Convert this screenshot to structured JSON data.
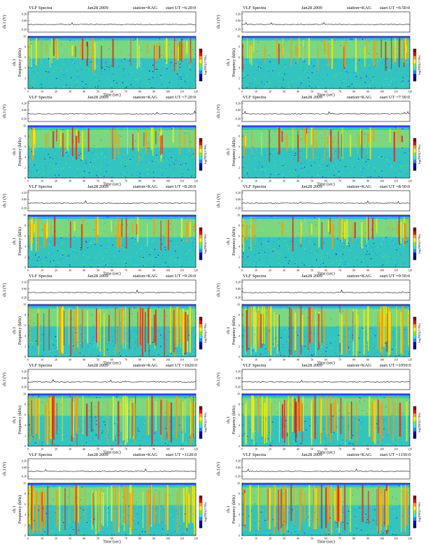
{
  "figure": {
    "panels": [
      {
        "header_left": "VLF Spectra",
        "date": "Jan28 2009",
        "station": "station=KAG",
        "start": "start  UT  =6:20:0"
      },
      {
        "header_left": "VLF Spectra",
        "date": "Jan28 2009",
        "station": "station=KAG",
        "start": "start  UT  =6:50:0"
      },
      {
        "header_left": "VLF Spectra",
        "date": "Jan28 2009",
        "station": "station=KAG",
        "start": "start  UT  =7:20:0"
      },
      {
        "header_left": "VLF Spectra",
        "date": "Jan28 2009",
        "station": "station=KAG",
        "start": "start  UT  =7:50:0"
      },
      {
        "header_left": "VLF Spectra",
        "date": "Jan28 2009",
        "station": "station=KAG",
        "start": "start  UT  =8:20:0"
      },
      {
        "header_left": "VLF Spectra",
        "date": "Jan28 2009",
        "station": "station=KAG",
        "start": "start  UT  =8:50:0"
      },
      {
        "header_left": "VLF Spectra",
        "date": "Jan28 2009",
        "station": "station=KAG",
        "start": "start  UT  =9:20:0"
      },
      {
        "header_left": "VLF Spectra",
        "date": "Jan28 2009",
        "station": "station=KAG",
        "start": "start  UT  =9:50:0"
      },
      {
        "header_left": "VLF Spectra",
        "date": "Jan28 2009",
        "station": "station=KAG",
        "start": "start  UT  =1020:0"
      },
      {
        "header_left": "VLF Spectra",
        "date": "Jan28 2009",
        "station": "station=KAG",
        "start": "start  UT  =1050:0"
      },
      {
        "header_left": "VLF Spectra",
        "date": "Jan28 2009",
        "station": "station=KAG",
        "start": "start  UT  =1120:0"
      },
      {
        "header_left": "VLF Spectra",
        "date": "Jan28 2009",
        "station": "station=KAG",
        "start": "start  UT  =1150:0"
      }
    ],
    "waveform_ylabel": "ch.1 (V)",
    "waveform_ticks": [
      "0.20",
      "0.00",
      "-0.20"
    ],
    "channel_label": "ch.1",
    "spectrogram_ylabel": "Frequency  (kHz)",
    "freq_ticks": [
      "0",
      "2",
      "4",
      "6",
      "8",
      "10"
    ],
    "time_ticks": [
      "0",
      "10",
      "20",
      "30",
      "40",
      "50",
      "60",
      "70",
      "80",
      "90",
      "100",
      "110",
      "120"
    ],
    "xlabel": "Time  (sec)",
    "colorbar_label": "log(PSD)(V²/Hz)",
    "colorbar_colors": [
      "#8b0000",
      "#ff0000",
      "#ffa500",
      "#ffff00",
      "#7cfc00",
      "#00ffff",
      "#1e90ff",
      "#0000cd",
      "#000080"
    ]
  },
  "chart_data": {
    "type": "heatmap",
    "panel_count": 12,
    "x_axis": {
      "label": "Time  (sec)",
      "range": [
        0,
        120
      ]
    },
    "y_axis": {
      "label": "Frequency  (kHz)",
      "range": [
        0,
        10
      ]
    },
    "waveform_axis": {
      "label": "ch.1 (V)",
      "range": [
        -0.2,
        0.2
      ]
    },
    "colorbar": {
      "label": "log(PSD)(V²/Hz)"
    }
  }
}
